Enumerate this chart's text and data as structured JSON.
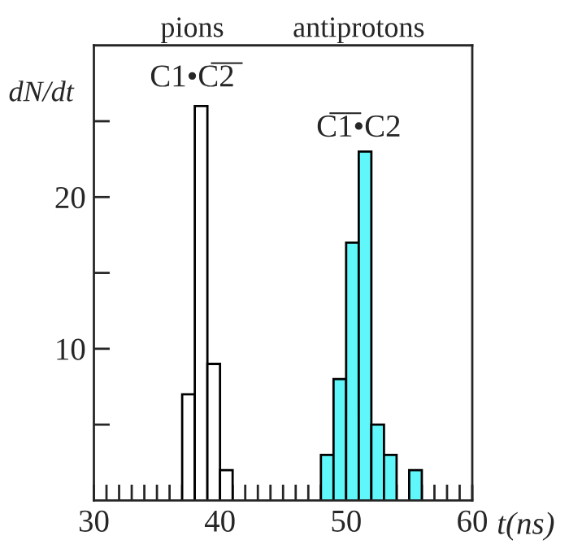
{
  "chart_data": {
    "type": "histogram",
    "xlabel": "t(ns)",
    "ylabel": "dN/dt",
    "bins": [
      37,
      38,
      39,
      40,
      41,
      42,
      43,
      44,
      45,
      46,
      47,
      48,
      49,
      50,
      51,
      52,
      53,
      54,
      55,
      56
    ],
    "values": [
      7,
      26,
      9,
      2,
      0,
      0,
      0,
      0,
      0,
      0,
      0,
      3,
      8,
      17,
      23,
      5,
      3,
      0,
      2
    ],
    "colors": [
      "#ffffff",
      "#ffffff",
      "#ffffff",
      "#ffffff",
      "#ffffff",
      "#ffffff",
      "#ffffff",
      "#ffffff",
      "#ffffff",
      "#ffffff",
      "#ffffff",
      "#5ff7fa",
      "#5ff7fa",
      "#5ff7fa",
      "#5ff7fa",
      "#5ff7fa",
      "#5ff7fa",
      "#5ff7fa",
      "#5ff7fa"
    ],
    "annotations": [
      "pions",
      "antiprotons",
      "C1•C̅2̅",
      "C̅1̅•C2"
    ],
    "xlim": [
      30,
      60
    ],
    "ylim": [
      0,
      30
    ],
    "xticks": [
      30,
      {
        "value": 31,
        "label": null
      },
      {
        "value": 32,
        "label": null
      },
      {
        "value": 33,
        "label": null
      },
      {
        "value": 34,
        "label": null
      },
      {
        "value": 35,
        "label": null
      },
      {
        "value": 36,
        "label": null
      },
      {
        "value": 37,
        "label": null
      },
      {
        "value": 38,
        "label": null
      },
      {
        "value": 39,
        "label": null
      },
      40,
      {
        "value": 41,
        "label": null
      },
      {
        "value": 42,
        "label": null
      },
      {
        "value": 43,
        "label": null
      },
      {
        "value": 44,
        "label": null
      },
      {
        "value": 45,
        "label": null
      },
      {
        "value": 46,
        "label": null
      },
      {
        "value": 47,
        "label": null
      },
      {
        "value": 48,
        "label": null
      },
      {
        "value": 49,
        "label": null
      },
      50,
      {
        "value": 51,
        "label": null
      },
      {
        "value": 52,
        "label": null
      },
      {
        "value": 53,
        "label": null
      },
      {
        "value": 54,
        "label": null
      },
      {
        "value": 55,
        "label": null
      },
      {
        "value": 56,
        "label": null
      },
      {
        "value": 57,
        "label": null
      },
      {
        "value": 58,
        "label": null
      },
      {
        "value": 59,
        "label": null
      },
      60
    ],
    "yticks": [
      {
        "value": 5,
        "label": null
      },
      10,
      {
        "value": 15,
        "label": null
      },
      20,
      {
        "value": 25,
        "label": null
      }
    ],
    "grid": false,
    "legend": false
  }
}
